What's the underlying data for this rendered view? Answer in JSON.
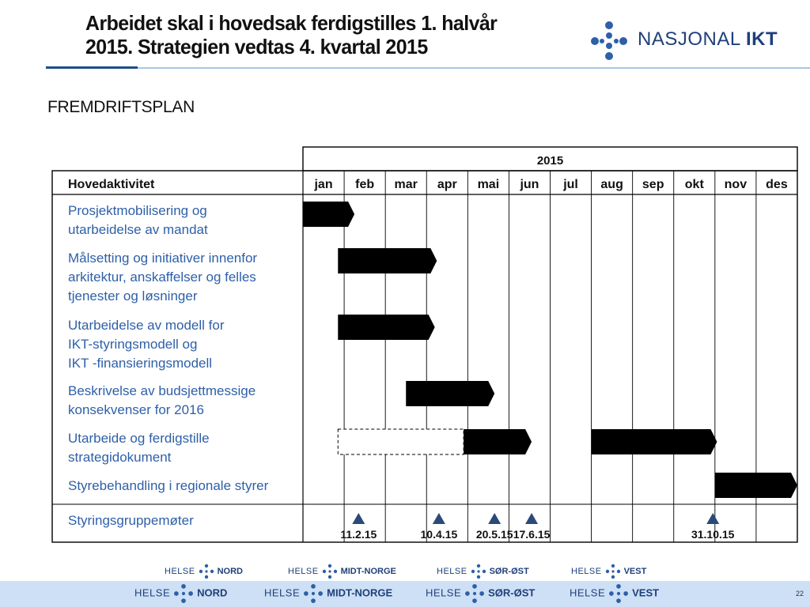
{
  "header": {
    "title_line1": "Arbeidet skal i hovedsak ferdigstilles 1. halvår",
    "title_line2": "2015. Strategien vedtas 4. kvartal 2015"
  },
  "logo": {
    "brand_light": "NASJONAL",
    "brand_bold": "IKT"
  },
  "subtitle": "FREMDRIFTSPLAN",
  "table": {
    "year": "2015",
    "activity_header": "Hovedaktivitet",
    "months": [
      "jan",
      "feb",
      "mar",
      "apr",
      "mai",
      "jun",
      "jul",
      "aug",
      "sep",
      "okt",
      "nov",
      "des"
    ],
    "activities": [
      {
        "lines": [
          "Prosjektmobilisering og",
          "utarbeidelse av mandat"
        ]
      },
      {
        "lines": [
          "Målsetting og initiativer innenfor",
          "arkitektur, anskaffelser og felles",
          "tjenester og løsninger"
        ]
      },
      {
        "lines": [
          "Utarbeidelse av modell for",
          "IKT-styringsmodell  og",
          "IKT -finansieringsmodell"
        ]
      },
      {
        "lines": [
          "Beskrivelse av budsjettmessige",
          "konsekvenser for 2016"
        ]
      },
      {
        "lines": [
          "Utarbeide og ferdigstille",
          "strategidokument"
        ]
      },
      {
        "lines": [
          "Styrebehandling  i regionale styrer"
        ]
      },
      {
        "lines": [
          "Styringsgruppemøter"
        ]
      }
    ],
    "bars": [
      {
        "row": 0,
        "start": 0.0,
        "end": 1.25,
        "style": "solid"
      },
      {
        "row": 1,
        "start": 0.85,
        "end": 3.25,
        "style": "solid"
      },
      {
        "row": 2,
        "start": 0.85,
        "end": 3.2,
        "style": "solid"
      },
      {
        "row": 3,
        "start": 2.5,
        "end": 4.65,
        "style": "solid"
      },
      {
        "row": 4,
        "start": 0.85,
        "end": 3.9,
        "style": "dashed"
      },
      {
        "row": 4,
        "start": 3.9,
        "end": 5.55,
        "style": "solid"
      },
      {
        "row": 4,
        "start": 7.0,
        "end": 10.05,
        "style": "solid"
      },
      {
        "row": 5,
        "start": 10.0,
        "end": 12.0,
        "style": "solid"
      }
    ],
    "meetings": [
      {
        "date": "11.2.15",
        "month_pos": 1.35
      },
      {
        "date": "10.4.15",
        "month_pos": 3.3
      },
      {
        "date": "20.5.15",
        "month_pos": 4.65
      },
      {
        "date": "17.6.15",
        "month_pos": 5.55
      },
      {
        "date": "31.10.15",
        "month_pos": 9.95
      }
    ]
  },
  "footer": {
    "small": [
      {
        "prefix": "HELSE",
        "region": "NORD"
      },
      {
        "prefix": "HELSE",
        "region": "MIDT-NORGE"
      },
      {
        "prefix": "HELSE",
        "region": "SØR-ØST"
      },
      {
        "prefix": "HELSE",
        "region": "VEST"
      }
    ],
    "large": [
      {
        "prefix": "HELSE",
        "region": "NORD"
      },
      {
        "prefix": "HELSE",
        "region": "MIDT-NORGE"
      },
      {
        "prefix": "HELSE",
        "region": "SØR-ØST"
      },
      {
        "prefix": "HELSE",
        "region": "VEST"
      }
    ],
    "page_number": "22"
  },
  "colors": {
    "title": "#111111",
    "activity_text": "#2e5fa8",
    "bar_fill": "#000000",
    "triangle": "#2b4a78",
    "header_rule": "#a9c7e3",
    "header_accent": "#1f4e8c",
    "brand": "#1f3f7a",
    "footer_blue": "#cde0f5"
  }
}
